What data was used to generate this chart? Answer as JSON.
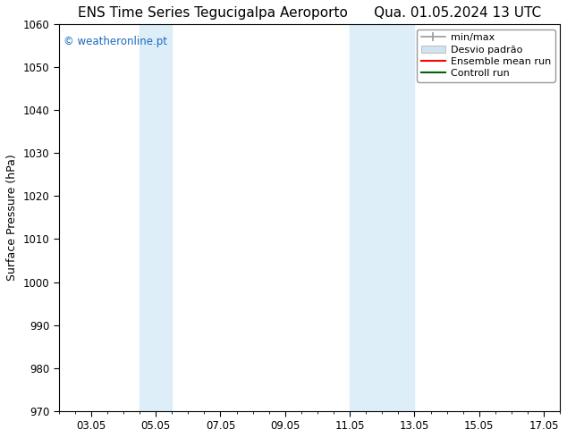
{
  "title_left": "ENS Time Series Tegucigalpa Aeroporto",
  "title_right": "Qua. 01.05.2024 13 UTC",
  "ylabel": "Surface Pressure (hPa)",
  "ylim": [
    970,
    1060
  ],
  "yticks": [
    970,
    980,
    990,
    1000,
    1010,
    1020,
    1030,
    1040,
    1050,
    1060
  ],
  "xlim": [
    2.0,
    17.5
  ],
  "xtick_labels": [
    "03.05",
    "05.05",
    "07.05",
    "09.05",
    "11.05",
    "13.05",
    "15.05",
    "17.05"
  ],
  "xtick_positions": [
    3,
    5,
    7,
    9,
    11,
    13,
    15,
    17
  ],
  "shaded_regions": [
    {
      "x_start": 4.5,
      "x_end": 5.5,
      "color": "#ddeef8"
    },
    {
      "x_start": 11.0,
      "x_end": 13.0,
      "color": "#ddeef8"
    }
  ],
  "watermark_text": "© weatheronline.pt",
  "watermark_color": "#1a6abf",
  "background_color": "#ffffff",
  "spine_color": "#000000",
  "tick_color": "#000000",
  "title_fontsize": 11,
  "tick_fontsize": 8.5,
  "ylabel_fontsize": 9,
  "legend_fontsize": 8
}
